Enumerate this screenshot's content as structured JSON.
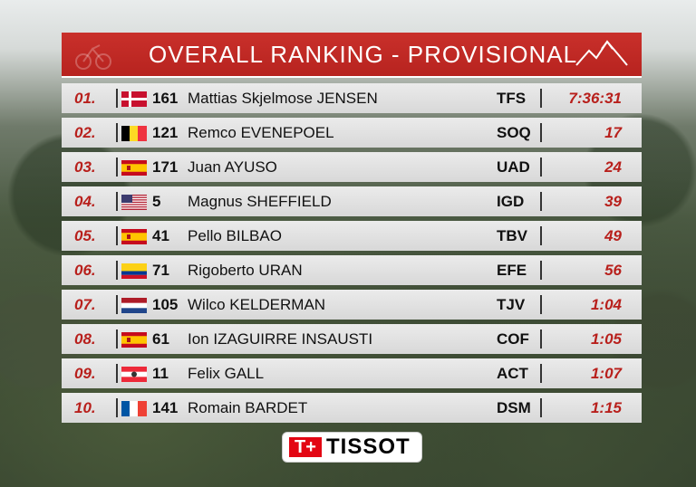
{
  "header": {
    "title": "OVERALL RANKING - PROVISIONAL"
  },
  "colors": {
    "accent_red": "#b7231f",
    "row_bg": "#e3e3e3"
  },
  "rows": [
    {
      "rank": "01.",
      "flag": "denmark-flag-icon",
      "bib": "161",
      "name": "Mattias Skjelmose JENSEN",
      "team": "TFS",
      "gap": "7:36:31"
    },
    {
      "rank": "02.",
      "flag": "belgium-flag-icon",
      "bib": "121",
      "name": "Remco EVENEPOEL",
      "team": "SOQ",
      "gap": "17"
    },
    {
      "rank": "03.",
      "flag": "spain-flag-icon",
      "bib": "171",
      "name": "Juan AYUSO",
      "team": "UAD",
      "gap": "24"
    },
    {
      "rank": "04.",
      "flag": "usa-flag-icon",
      "bib": "5",
      "name": "Magnus SHEFFIELD",
      "team": "IGD",
      "gap": "39"
    },
    {
      "rank": "05.",
      "flag": "spain-flag-icon",
      "bib": "41",
      "name": "Pello BILBAO",
      "team": "TBV",
      "gap": "49"
    },
    {
      "rank": "06.",
      "flag": "colombia-flag-icon",
      "bib": "71",
      "name": "Rigoberto URAN",
      "team": "EFE",
      "gap": "56"
    },
    {
      "rank": "07.",
      "flag": "netherlands-flag-icon",
      "bib": "105",
      "name": "Wilco KELDERMAN",
      "team": "TJV",
      "gap": "1:04"
    },
    {
      "rank": "08.",
      "flag": "spain-flag-icon",
      "bib": "61",
      "name": "Ion IZAGUIRRE INSAUSTI",
      "team": "COF",
      "gap": "1:05"
    },
    {
      "rank": "09.",
      "flag": "austria-flag-icon",
      "bib": "11",
      "name": "Felix GALL",
      "team": "ACT",
      "gap": "1:07"
    },
    {
      "rank": "10.",
      "flag": "france-flag-icon",
      "bib": "141",
      "name": "Romain BARDET",
      "team": "DSM",
      "gap": "1:15"
    }
  ],
  "sponsor": {
    "name": "TISSOT",
    "icon": "swiss-cross-icon"
  }
}
